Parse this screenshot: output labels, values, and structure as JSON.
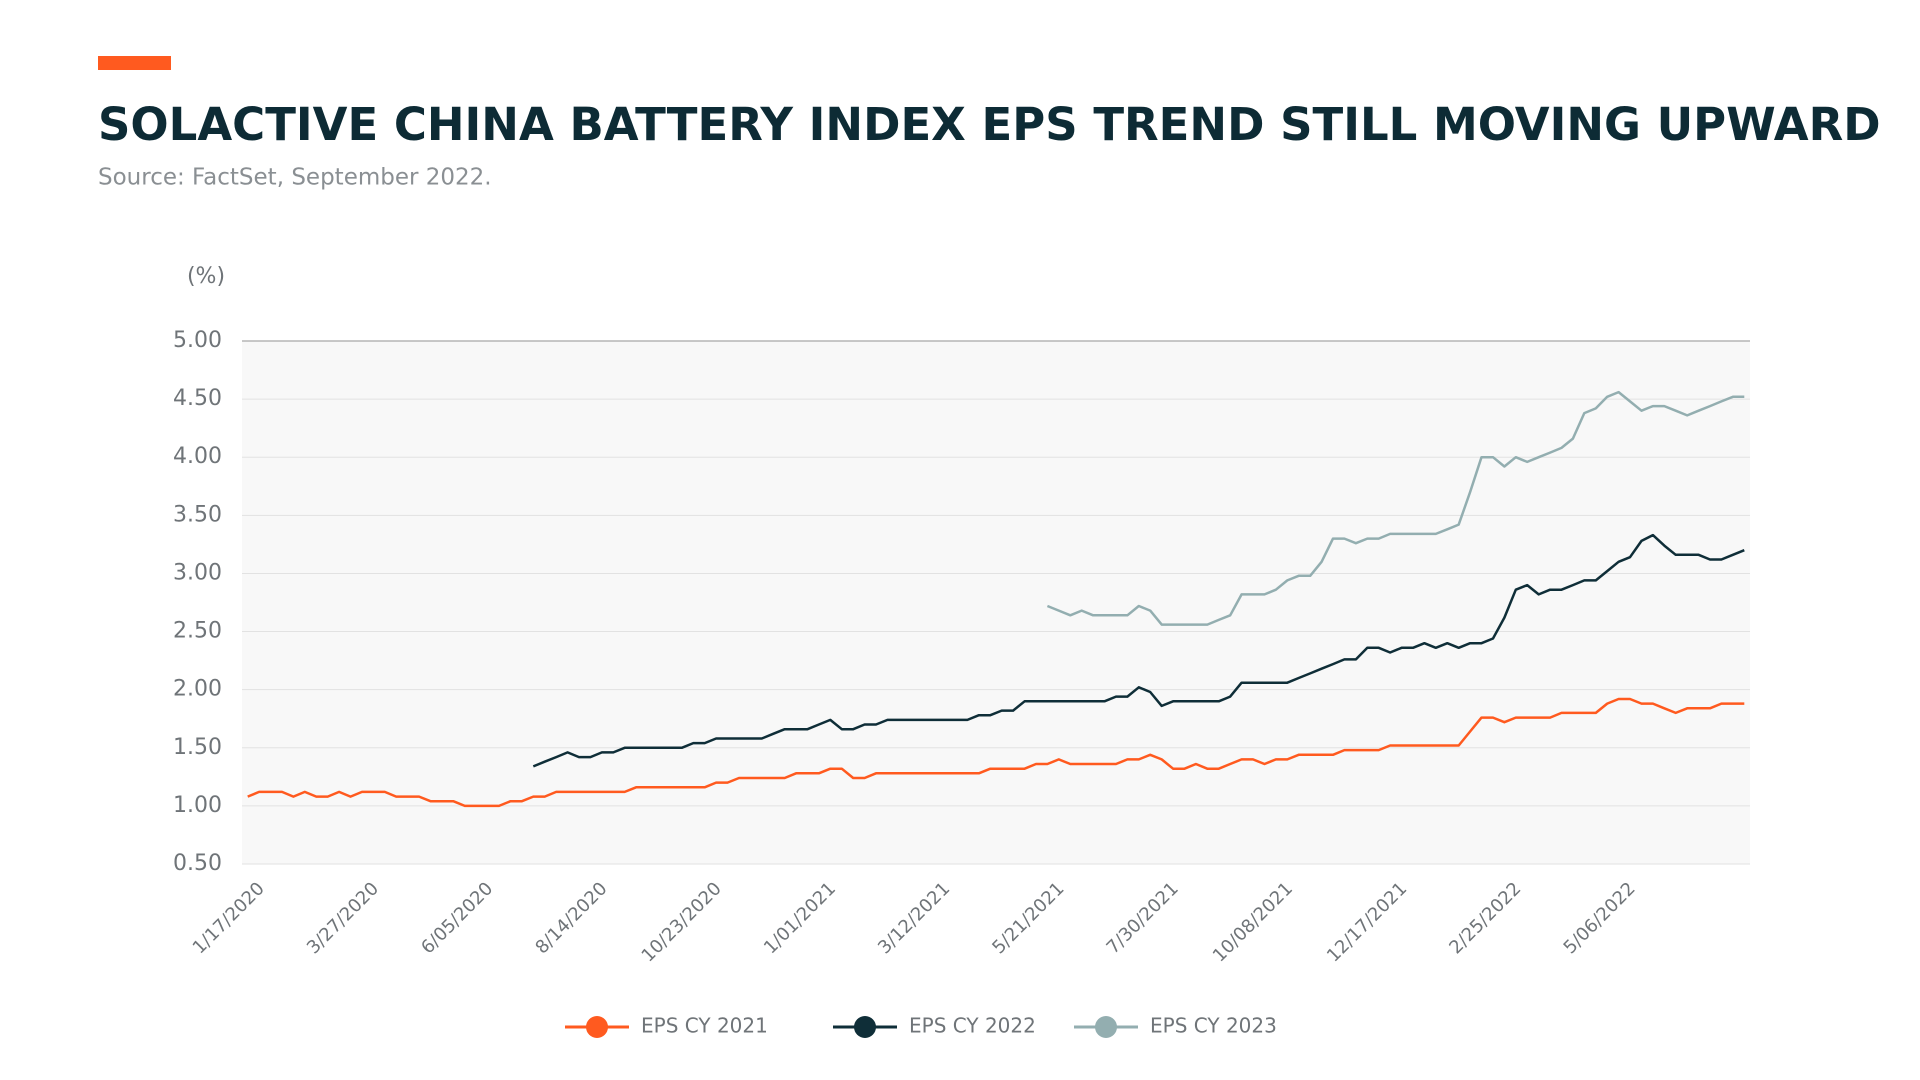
{
  "chart_data": {
    "type": "line",
    "title": "SOLACTIVE CHINA BATTERY INDEX EPS TREND STILL MOVING UPWARD",
    "subtitle": "Source: FactSet, September 2022.",
    "y_label": "(%)",
    "categories": [
      "1/17/2020",
      null,
      null,
      null,
      null,
      null,
      null,
      null,
      null,
      null,
      "3/27/2020",
      null,
      null,
      null,
      null,
      null,
      null,
      null,
      null,
      null,
      "6/05/2020",
      null,
      null,
      null,
      null,
      null,
      null,
      null,
      null,
      null,
      "8/14/2020",
      null,
      null,
      null,
      null,
      null,
      null,
      null,
      null,
      null,
      "10/23/2020",
      null,
      null,
      null,
      null,
      null,
      null,
      null,
      null,
      null,
      "1/01/2021",
      null,
      null,
      null,
      null,
      null,
      null,
      null,
      null,
      null,
      "3/12/2021",
      null,
      null,
      null,
      null,
      null,
      null,
      null,
      null,
      null,
      "5/21/2021",
      null,
      null,
      null,
      null,
      null,
      null,
      null,
      null,
      null,
      "7/30/2021",
      null,
      null,
      null,
      null,
      null,
      null,
      null,
      null,
      null,
      "10/08/2021",
      null,
      null,
      null,
      null,
      null,
      null,
      null,
      null,
      null,
      "12/17/2021",
      null,
      null,
      null,
      null,
      null,
      null,
      null,
      null,
      null,
      "2/25/2022",
      null,
      null,
      null,
      null,
      null,
      null,
      null,
      null,
      null,
      "5/06/2022",
      null,
      null,
      null,
      null,
      null,
      null,
      null,
      null,
      null,
      null,
      null
    ],
    "series": [
      {
        "name": "EPS CY 2021",
        "color": "#ff5a1f",
        "values": [
          1.08,
          1.12,
          1.12,
          1.12,
          1.08,
          1.12,
          1.08,
          1.08,
          1.12,
          1.08,
          1.12,
          1.12,
          1.12,
          1.08,
          1.08,
          1.08,
          1.04,
          1.04,
          1.04,
          1.0,
          1.0,
          1.0,
          1.0,
          1.04,
          1.04,
          1.08,
          1.08,
          1.12,
          1.12,
          1.12,
          1.12,
          1.12,
          1.12,
          1.12,
          1.16,
          1.16,
          1.16,
          1.16,
          1.16,
          1.16,
          1.16,
          1.2,
          1.2,
          1.24,
          1.24,
          1.24,
          1.24,
          1.24,
          1.28,
          1.28,
          1.28,
          1.32,
          1.32,
          1.24,
          1.24,
          1.28,
          1.28,
          1.28,
          1.28,
          1.28,
          1.28,
          1.28,
          1.28,
          1.28,
          1.28,
          1.32,
          1.32,
          1.32,
          1.32,
          1.36,
          1.36,
          1.4,
          1.36,
          1.36,
          1.36,
          1.36,
          1.36,
          1.4,
          1.4,
          1.44,
          1.4,
          1.32,
          1.32,
          1.36,
          1.32,
          1.32,
          1.36,
          1.4,
          1.4,
          1.36,
          1.4,
          1.4,
          1.44,
          1.44,
          1.44,
          1.44,
          1.48,
          1.48,
          1.48,
          1.48,
          1.52,
          1.52,
          1.52,
          1.52,
          1.52,
          1.52,
          1.52,
          1.64,
          1.76,
          1.76,
          1.72,
          1.76,
          1.76,
          1.76,
          1.76,
          1.8,
          1.8,
          1.8,
          1.8,
          1.88,
          1.92,
          1.92,
          1.88,
          1.88,
          1.84,
          1.8,
          1.84,
          1.84,
          1.84,
          1.88,
          1.88,
          1.88
        ]
      },
      {
        "name": "EPS CY 2022",
        "color": "#0f2e38",
        "values": [
          null,
          null,
          null,
          null,
          null,
          null,
          null,
          null,
          null,
          null,
          null,
          null,
          null,
          null,
          null,
          null,
          null,
          null,
          null,
          null,
          null,
          null,
          null,
          null,
          null,
          1.34,
          1.38,
          1.42,
          1.46,
          1.42,
          1.42,
          1.46,
          1.46,
          1.5,
          1.5,
          1.5,
          1.5,
          1.5,
          1.5,
          1.54,
          1.54,
          1.58,
          1.58,
          1.58,
          1.58,
          1.58,
          1.62,
          1.66,
          1.66,
          1.66,
          1.7,
          1.74,
          1.66,
          1.66,
          1.7,
          1.7,
          1.74,
          1.74,
          1.74,
          1.74,
          1.74,
          1.74,
          1.74,
          1.74,
          1.78,
          1.78,
          1.82,
          1.82,
          1.9,
          1.9,
          1.9,
          1.9,
          1.9,
          1.9,
          1.9,
          1.9,
          1.94,
          1.94,
          2.02,
          1.98,
          1.86,
          1.9,
          1.9,
          1.9,
          1.9,
          1.9,
          1.94,
          2.06,
          2.06,
          2.06,
          2.06,
          2.06,
          2.1,
          2.14,
          2.18,
          2.22,
          2.26,
          2.26,
          2.36,
          2.36,
          2.32,
          2.36,
          2.36,
          2.4,
          2.36,
          2.4,
          2.36,
          2.4,
          2.4,
          2.44,
          2.62,
          2.86,
          2.9,
          2.82,
          2.86,
          2.86,
          2.9,
          2.94,
          2.94,
          3.02,
          3.1,
          3.14,
          3.28,
          3.33,
          3.24,
          3.16,
          3.16,
          3.16,
          3.12,
          3.12,
          3.16,
          3.2
        ]
      },
      {
        "name": "EPS CY 2023",
        "color": "#93aeb0",
        "values": [
          null,
          null,
          null,
          null,
          null,
          null,
          null,
          null,
          null,
          null,
          null,
          null,
          null,
          null,
          null,
          null,
          null,
          null,
          null,
          null,
          null,
          null,
          null,
          null,
          null,
          null,
          null,
          null,
          null,
          null,
          null,
          null,
          null,
          null,
          null,
          null,
          null,
          null,
          null,
          null,
          null,
          null,
          null,
          null,
          null,
          null,
          null,
          null,
          null,
          null,
          null,
          null,
          null,
          null,
          null,
          null,
          null,
          null,
          null,
          null,
          null,
          null,
          null,
          null,
          null,
          null,
          null,
          null,
          null,
          null,
          2.72,
          2.68,
          2.64,
          2.68,
          2.64,
          2.64,
          2.64,
          2.64,
          2.72,
          2.68,
          2.56,
          2.56,
          2.56,
          2.56,
          2.56,
          2.6,
          2.64,
          2.82,
          2.82,
          2.82,
          2.86,
          2.94,
          2.98,
          2.98,
          3.1,
          3.3,
          3.3,
          3.26,
          3.3,
          3.3,
          3.34,
          3.34,
          3.34,
          3.34,
          3.34,
          3.38,
          3.42,
          3.7,
          4.0,
          4.0,
          3.92,
          4.0,
          3.96,
          4.0,
          4.04,
          4.08,
          4.16,
          4.38,
          4.42,
          4.52,
          4.56,
          4.48,
          4.4,
          4.44,
          4.44,
          4.4,
          4.36,
          4.4,
          4.44,
          4.48,
          4.52,
          4.52
        ]
      }
    ],
    "ylim": [
      0.5,
      5
    ],
    "yticks": [
      {
        "value": 0.5,
        "label": "0.50"
      },
      {
        "value": 1,
        "label": "1.00"
      },
      {
        "value": 1.5,
        "label": "1.50"
      },
      {
        "value": 2,
        "label": "2.00"
      },
      {
        "value": 2.5,
        "label": "2.50"
      },
      {
        "value": 3,
        "label": "3.00"
      },
      {
        "value": 3.5,
        "label": "3.50"
      },
      {
        "value": 4,
        "label": "4.00"
      },
      {
        "value": 4.5,
        "label": "4.50"
      },
      {
        "value": 5,
        "label": "5.00"
      }
    ],
    "grid": true,
    "legend": "bottom"
  }
}
